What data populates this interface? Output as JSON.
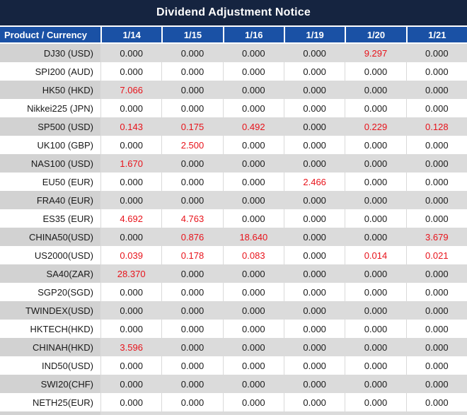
{
  "title": "Dividend Adjustment Notice",
  "table": {
    "columns": [
      "Product / Currency",
      "1/14",
      "1/15",
      "1/16",
      "1/19",
      "1/20",
      "1/21"
    ],
    "rows": [
      {
        "product": "DJ30 (USD)",
        "values": [
          "0.000",
          "0.000",
          "0.000",
          "0.000",
          "9.297",
          "0.000"
        ]
      },
      {
        "product": "SPI200 (AUD)",
        "values": [
          "0.000",
          "0.000",
          "0.000",
          "0.000",
          "0.000",
          "0.000"
        ]
      },
      {
        "product": "HK50 (HKD)",
        "values": [
          "7.066",
          "0.000",
          "0.000",
          "0.000",
          "0.000",
          "0.000"
        ]
      },
      {
        "product": "Nikkei225 (JPN)",
        "values": [
          "0.000",
          "0.000",
          "0.000",
          "0.000",
          "0.000",
          "0.000"
        ]
      },
      {
        "product": "SP500 (USD)",
        "values": [
          "0.143",
          "0.175",
          "0.492",
          "0.000",
          "0.229",
          "0.128"
        ]
      },
      {
        "product": "UK100 (GBP)",
        "values": [
          "0.000",
          "2.500",
          "0.000",
          "0.000",
          "0.000",
          "0.000"
        ]
      },
      {
        "product": "NAS100 (USD)",
        "values": [
          "1.670",
          "0.000",
          "0.000",
          "0.000",
          "0.000",
          "0.000"
        ]
      },
      {
        "product": "EU50 (EUR)",
        "values": [
          "0.000",
          "0.000",
          "0.000",
          "2.466",
          "0.000",
          "0.000"
        ]
      },
      {
        "product": "FRA40 (EUR)",
        "values": [
          "0.000",
          "0.000",
          "0.000",
          "0.000",
          "0.000",
          "0.000"
        ]
      },
      {
        "product": "ES35 (EUR)",
        "values": [
          "4.692",
          "4.763",
          "0.000",
          "0.000",
          "0.000",
          "0.000"
        ]
      },
      {
        "product": "CHINA50(USD)",
        "values": [
          "0.000",
          "0.876",
          "18.640",
          "0.000",
          "0.000",
          "3.679"
        ]
      },
      {
        "product": "US2000(USD)",
        "values": [
          "0.039",
          "0.178",
          "0.083",
          "0.000",
          "0.014",
          "0.021"
        ]
      },
      {
        "product": "SA40(ZAR)",
        "values": [
          "28.370",
          "0.000",
          "0.000",
          "0.000",
          "0.000",
          "0.000"
        ]
      },
      {
        "product": "SGP20(SGD)",
        "values": [
          "0.000",
          "0.000",
          "0.000",
          "0.000",
          "0.000",
          "0.000"
        ]
      },
      {
        "product": "TWINDEX(USD)",
        "values": [
          "0.000",
          "0.000",
          "0.000",
          "0.000",
          "0.000",
          "0.000"
        ]
      },
      {
        "product": "HKTECH(HKD)",
        "values": [
          "0.000",
          "0.000",
          "0.000",
          "0.000",
          "0.000",
          "0.000"
        ]
      },
      {
        "product": "CHINAH(HKD)",
        "values": [
          "3.596",
          "0.000",
          "0.000",
          "0.000",
          "0.000",
          "0.000"
        ]
      },
      {
        "product": "IND50(USD)",
        "values": [
          "0.000",
          "0.000",
          "0.000",
          "0.000",
          "0.000",
          "0.000"
        ]
      },
      {
        "product": "SWI20(CHF)",
        "values": [
          "0.000",
          "0.000",
          "0.000",
          "0.000",
          "0.000",
          "0.000"
        ]
      },
      {
        "product": "NETH25(EUR)",
        "values": [
          "0.000",
          "0.000",
          "0.000",
          "0.000",
          "0.000",
          "0.000"
        ]
      }
    ],
    "zero_value": "0.000"
  },
  "colors": {
    "title_bg": "#152440",
    "header_bg": "#1A51A5",
    "header_text": "#FFFFFF",
    "row_bg": "#FFFFFF",
    "stripe_bg": "#DBDBDB",
    "stripe_first_col_bg": "#D2D2D2",
    "grid_line": "#D9D9D9",
    "value_text": "#1A1A1A",
    "nonzero_value_text": "#E8131B"
  }
}
